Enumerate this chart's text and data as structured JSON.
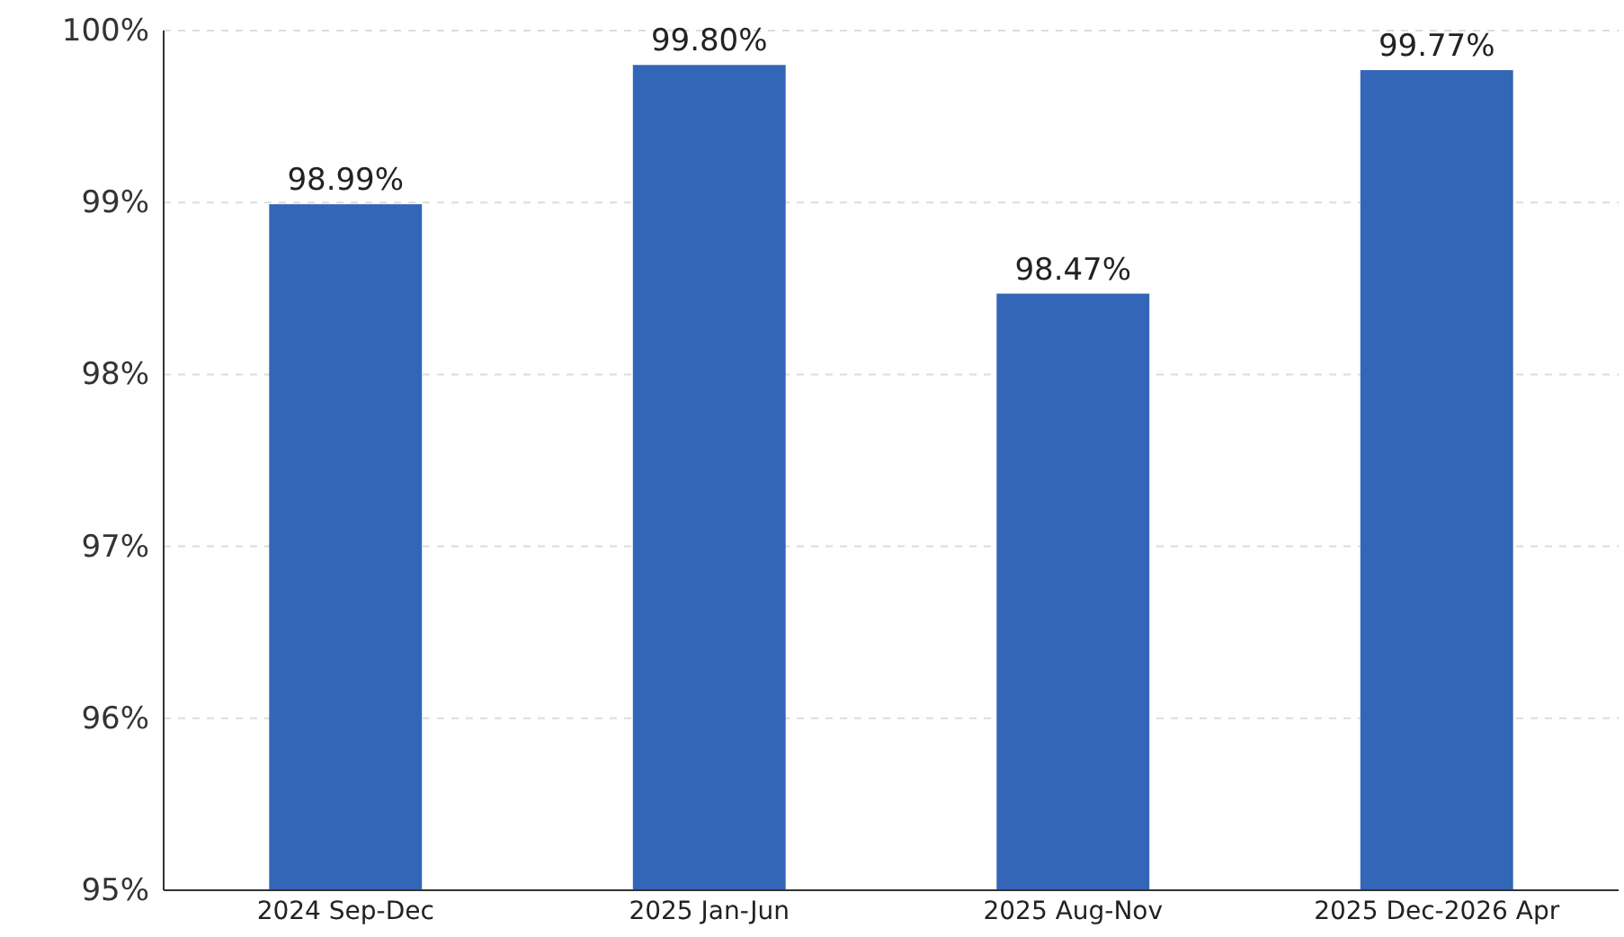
{
  "chart_data": {
    "type": "bar",
    "categories": [
      "2024 Sep-Dec",
      "2025 Jan-Jun",
      "2025 Aug-Nov",
      "2025 Dec-2026 Apr"
    ],
    "values": [
      98.99,
      99.8,
      98.47,
      99.77
    ],
    "value_labels": [
      "98.99%",
      "99.80%",
      "98.47%",
      "99.77%"
    ],
    "color": "#3466b8",
    "ylim": [
      95,
      100
    ],
    "yticks": [
      {
        "value": 95,
        "label": "95%"
      },
      {
        "value": 96,
        "label": "96%"
      },
      {
        "value": 97,
        "label": "97%"
      },
      {
        "value": 98,
        "label": "98%"
      },
      {
        "value": 99,
        "label": "99%"
      },
      {
        "value": 100,
        "label": "100%"
      }
    ],
    "grid": "y"
  }
}
